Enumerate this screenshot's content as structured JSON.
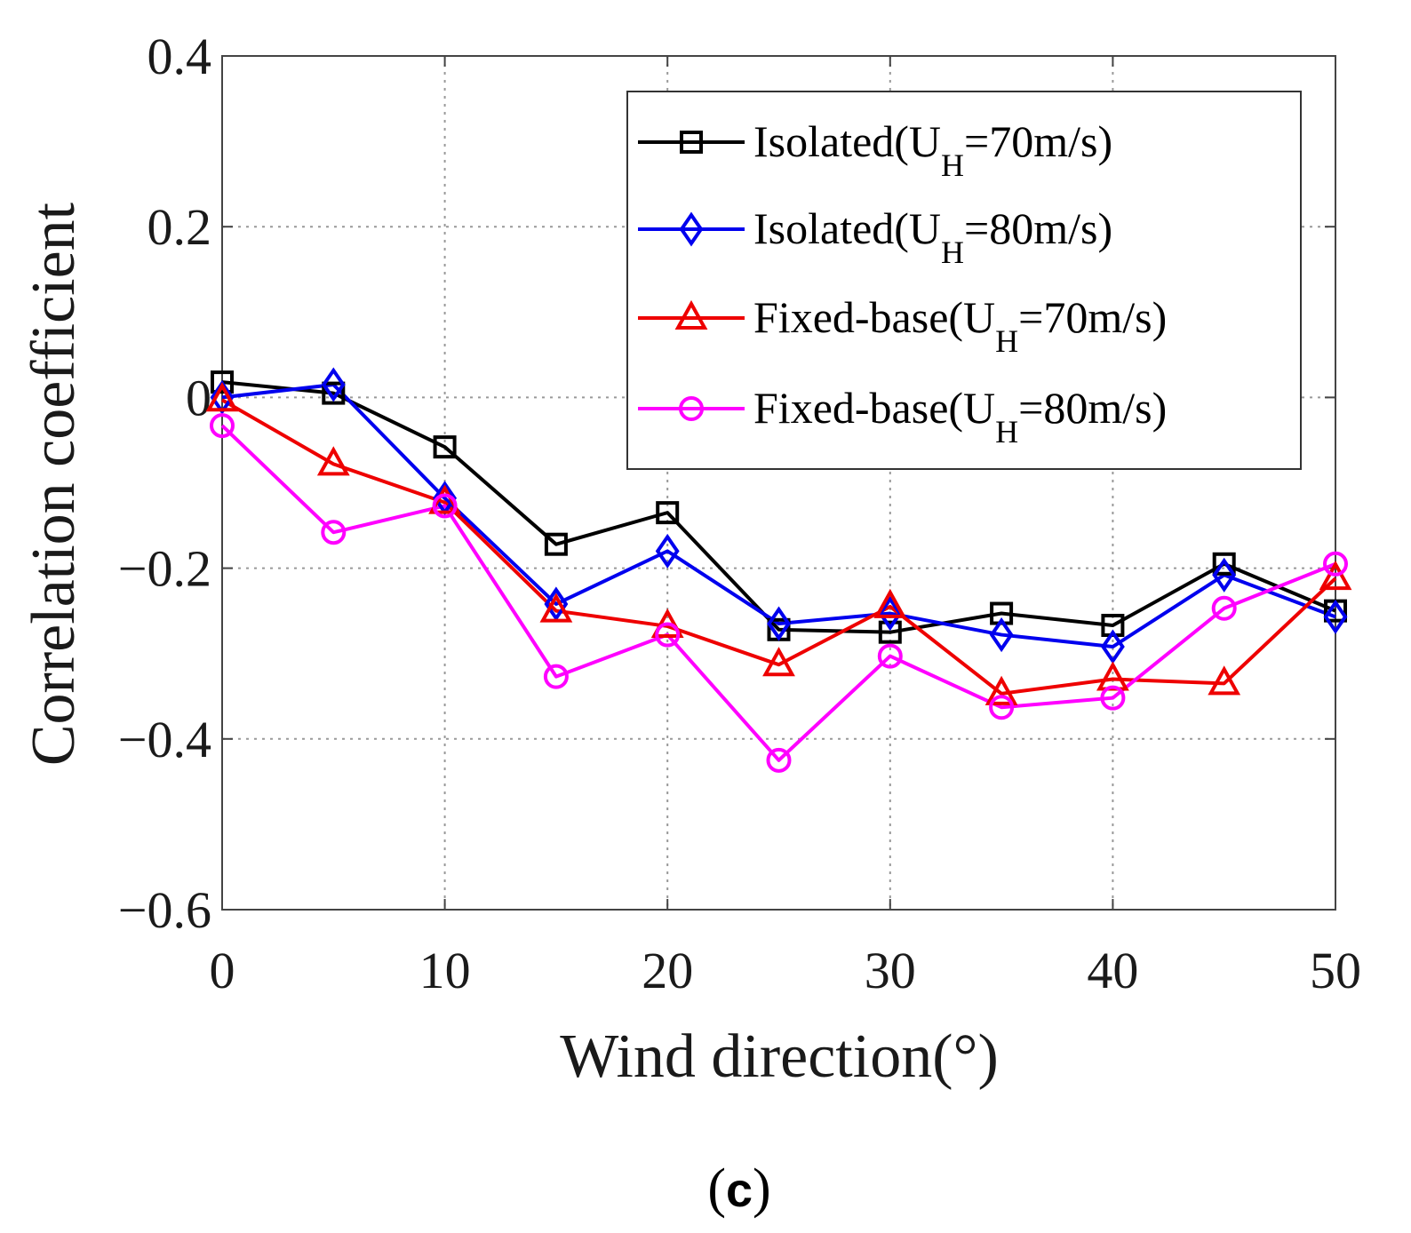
{
  "chart_data": {
    "type": "line",
    "title": "",
    "xlabel": "Wind direction(°)",
    "ylabel": "Correlation coefficient",
    "xlim": [
      0,
      50
    ],
    "ylim": [
      -0.6,
      0.4
    ],
    "xticks": [
      0,
      10,
      20,
      30,
      40,
      50
    ],
    "xtick_labels": [
      "0",
      "10",
      "20",
      "30",
      "40",
      "50"
    ],
    "yticks": [
      0.4,
      0.2,
      0,
      -0.2,
      -0.4,
      -0.6
    ],
    "ytick_labels": [
      "0.4",
      "0.2",
      "0",
      "−0.2",
      "−0.4",
      "−0.6"
    ],
    "grid": true,
    "legend_position": "top-right",
    "x": [
      0,
      5,
      10,
      15,
      20,
      25,
      30,
      35,
      40,
      45,
      50
    ],
    "series": [
      {
        "name": "Isolated(U_H=70m/s)",
        "label_prefix": "Isolated(U",
        "label_sub": "H",
        "label_suffix": "=70m/s)",
        "color": "#000000",
        "marker": "square",
        "values": [
          0.018,
          0.005,
          -0.058,
          -0.172,
          -0.135,
          -0.272,
          -0.275,
          -0.253,
          -0.267,
          -0.195,
          -0.25
        ]
      },
      {
        "name": "Isolated(U_H=80m/s)",
        "label_prefix": "Isolated(U",
        "label_sub": "H",
        "label_suffix": "=80m/s)",
        "color": "#0000ee",
        "marker": "diamond",
        "values": [
          0.0,
          0.015,
          -0.118,
          -0.242,
          -0.18,
          -0.265,
          -0.253,
          -0.278,
          -0.292,
          -0.208,
          -0.257
        ]
      },
      {
        "name": "Fixed-base(U_H=70m/s)",
        "label_prefix": "Fixed-base(U",
        "label_sub": "H",
        "label_suffix": "=70m/s)",
        "color": "#ee0000",
        "marker": "triangle",
        "values": [
          -0.003,
          -0.078,
          -0.123,
          -0.25,
          -0.268,
          -0.313,
          -0.245,
          -0.347,
          -0.33,
          -0.335,
          -0.212
        ]
      },
      {
        "name": "Fixed-base(U_H=80m/s)",
        "label_prefix": "Fixed-base(U",
        "label_sub": "H",
        "label_suffix": "=80m/s)",
        "color": "#ff00ff",
        "marker": "circle",
        "values": [
          -0.033,
          -0.158,
          -0.127,
          -0.327,
          -0.278,
          -0.425,
          -0.303,
          -0.363,
          -0.352,
          -0.247,
          -0.195
        ]
      }
    ]
  },
  "caption": {
    "open": "(",
    "letter": "c",
    "close": ")"
  }
}
